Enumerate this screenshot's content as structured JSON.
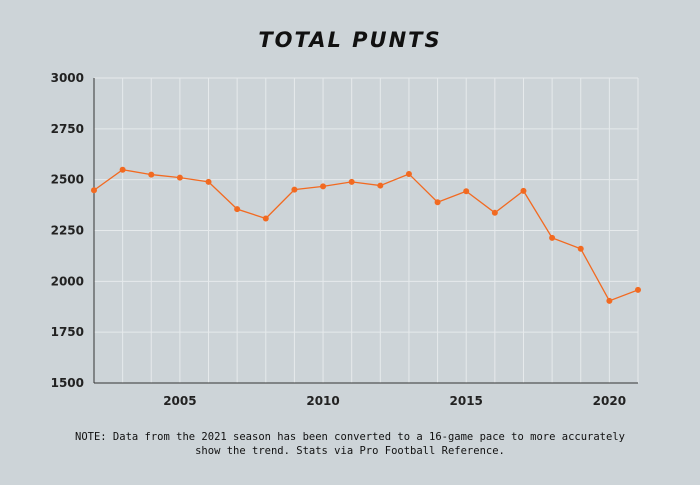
{
  "chart_data": {
    "type": "line",
    "title": "TOTAL PUNTS",
    "xlabel": "",
    "ylabel": "",
    "x": [
      2002,
      2003,
      2004,
      2005,
      2006,
      2007,
      2008,
      2009,
      2010,
      2011,
      2012,
      2013,
      2014,
      2015,
      2016,
      2017,
      2018,
      2019,
      2020,
      2021
    ],
    "series": [
      {
        "values": [
          2448,
          2549,
          2525,
          2510,
          2489,
          2355,
          2309,
          2451,
          2467,
          2489,
          2471,
          2528,
          2389,
          2443,
          2337,
          2445,
          2214,
          2160,
          1904,
          1958
        ],
        "color": "#f26a21"
      }
    ],
    "xlim": [
      2002,
      2021
    ],
    "ylim": [
      1500,
      3000
    ],
    "xticks": [
      "2005",
      "2010",
      "2015",
      "2020"
    ],
    "yticks": [
      "1500",
      "1750",
      "2000",
      "2250",
      "2500",
      "2750",
      "3000"
    ],
    "grid": true,
    "background": "#cdd4d8",
    "note": "NOTE: Data from the 2021 season has been converted to a 16-game pace to more accurately show the trend. Stats via Pro Football Reference."
  }
}
